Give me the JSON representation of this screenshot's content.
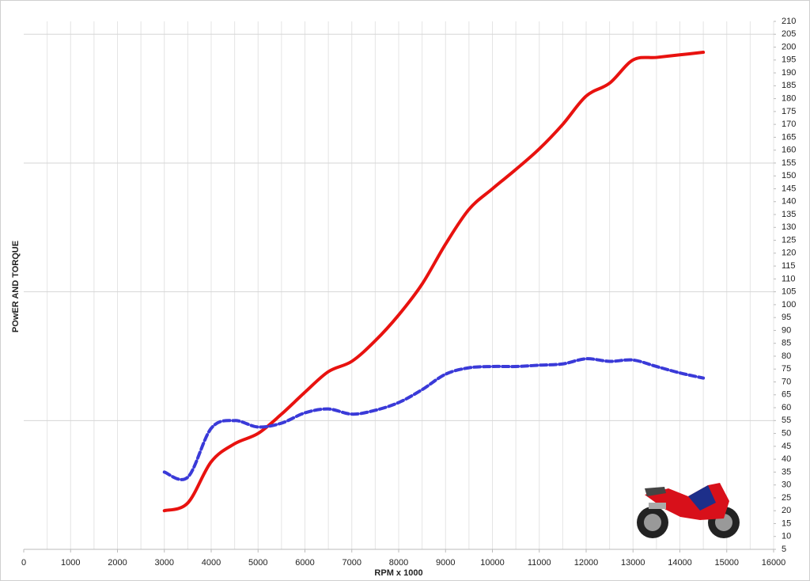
{
  "chart_data": {
    "type": "line",
    "x_label": "RPM x 1000",
    "y_label": "POwER AND TORQUE",
    "x": [
      3000,
      3500,
      4000,
      4500,
      5000,
      5500,
      6000,
      6500,
      7000,
      7500,
      8000,
      8500,
      9000,
      9500,
      10000,
      10500,
      11000,
      11500,
      12000,
      12500,
      13000,
      13500,
      14000,
      14500
    ],
    "series": [
      {
        "color": "#e8120f",
        "dash": false,
        "values": [
          20,
          23,
          39,
          46,
          50,
          57.5,
          66,
          74,
          78,
          86,
          96,
          108,
          123.5,
          137,
          145,
          152.5,
          160.5,
          170,
          181,
          186,
          195,
          196,
          197,
          198
        ]
      },
      {
        "color": "#3a3ad8",
        "dash": true,
        "values": [
          35,
          33,
          52,
          55,
          52.5,
          54,
          58,
          59.5,
          57.5,
          59,
          62,
          67,
          73,
          75.5,
          76,
          76,
          76.5,
          77,
          79,
          78,
          78.5,
          76,
          73.5,
          71.5
        ]
      }
    ],
    "xlim": [
      0,
      16000
    ],
    "xticks": [
      0,
      1000,
      2000,
      3000,
      4000,
      5000,
      6000,
      7000,
      8000,
      9000,
      10000,
      11000,
      12000,
      13000,
      14000,
      15000,
      16000
    ],
    "xgrid": [
      500,
      1000,
      1500,
      2000,
      2500,
      3000,
      3500,
      4000,
      4500,
      5000,
      5500,
      6000,
      6500,
      7000,
      7500,
      8000,
      8500,
      9000,
      9500,
      10000,
      10500,
      11000,
      11500,
      12000,
      12500,
      13000,
      13500,
      14000,
      14500,
      15000,
      15500,
      16000
    ],
    "ylim": [
      5,
      210
    ],
    "yticks": [
      5,
      10,
      15,
      20,
      25,
      30,
      35,
      40,
      45,
      50,
      55,
      60,
      65,
      70,
      75,
      80,
      85,
      90,
      95,
      100,
      105,
      110,
      115,
      120,
      125,
      130,
      135,
      140,
      145,
      150,
      155,
      160,
      165,
      170,
      175,
      180,
      185,
      190,
      195,
      200,
      205,
      210
    ],
    "ygrid": [
      5,
      55,
      105,
      155,
      205
    ],
    "grid": true
  }
}
